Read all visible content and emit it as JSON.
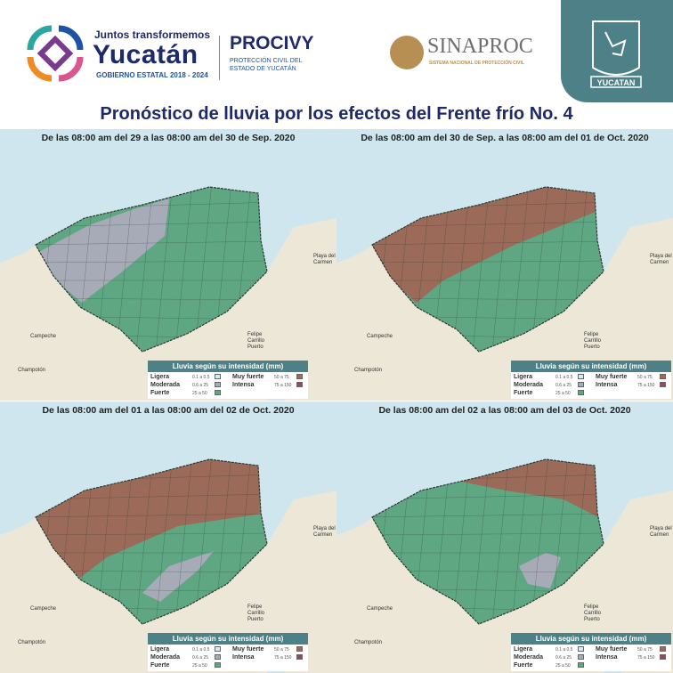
{
  "header": {
    "gov_tagline": "Juntos transformemos",
    "gov_name": "Yucatán",
    "gov_period": "GOBIERNO ESTATAL 2018 - 2024",
    "procivy": "PROCIVY",
    "procivy_sub": "PROTECCIÓN CIVIL DEL ESTADO DE YUCATÁN",
    "sinaproc": "SINAPROC",
    "sinaproc_sub": "SISTEMA NACIONAL DE PROTECCIÓN CIVIL",
    "shield_label": "YUCATAN"
  },
  "title": "Pronóstico de lluvia por los efectos del Frente frío No. 4",
  "colors": {
    "green": "#5fa783",
    "gray": "#a7abb8",
    "brown": "#9b6a58",
    "sea": "#cfe6ee",
    "land": "#ece7d6",
    "teal": "#4e8187"
  },
  "legend": {
    "title": "Lluvia según su intensidad (mm)",
    "items": [
      {
        "label": "Ligera",
        "range": "0.1 a 0.5",
        "color": "#d6ecf3"
      },
      {
        "label": "Moderada",
        "range": "0.6 a 25",
        "color": "#a7abb8"
      },
      {
        "label": "Fuerte",
        "range": "25 a 50",
        "color": "#5fa783"
      },
      {
        "label": "Muy fuerte",
        "range": "50 a 75",
        "color": "#9b6a58"
      },
      {
        "label": "Intensa",
        "range": "75 a 150",
        "color": "#8a4d62"
      }
    ]
  },
  "places": {
    "campeche": "Campeche",
    "champoton": "Champotón",
    "felipe": "Felipe Carrillo Puerto",
    "playa": "Playa del Carmen"
  },
  "panels": [
    {
      "period": "De las 08:00 am del 29 a las 08:00 am del 30 de Sep. 2020",
      "zones": [
        "Fuerte",
        "Moderada"
      ]
    },
    {
      "period": "De las 08:00 am del 30 de Sep. a las 08:00 am del 01 de Oct. 2020",
      "zones": [
        "Fuerte",
        "Muy fuerte"
      ]
    },
    {
      "period": "De las 08:00 am del 01 a las 08:00 am del 02 de Oct. 2020",
      "zones": [
        "Fuerte",
        "Muy fuerte",
        "Moderada"
      ]
    },
    {
      "period": "De las 08:00 am del 02 a las 08:00 am del 03 de Oct. 2020",
      "zones": [
        "Fuerte",
        "Muy fuerte",
        "Moderada"
      ]
    }
  ]
}
